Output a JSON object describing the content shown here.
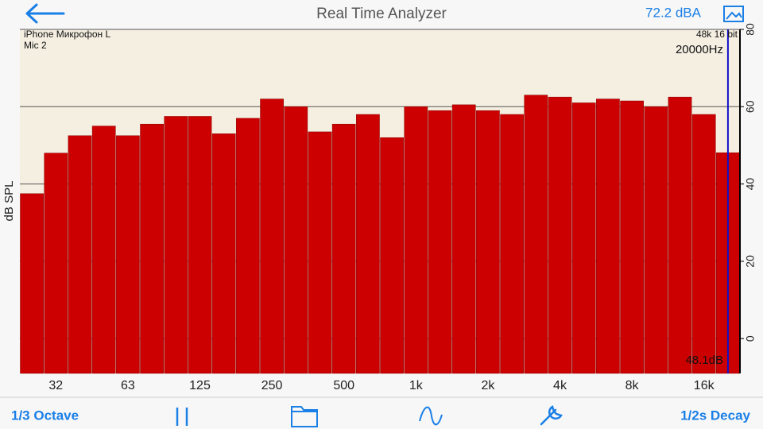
{
  "header": {
    "title": "Real Time Analyzer",
    "level": "72.2 dBA"
  },
  "toolbar": {
    "left": "1/3 Octave",
    "right": "1/2s Decay"
  },
  "chart_data": {
    "type": "bar",
    "y_label": "dB SPL",
    "categories": [
      null,
      "32",
      null,
      null,
      "63",
      null,
      null,
      "125",
      null,
      null,
      "250",
      null,
      null,
      "500",
      null,
      null,
      "1k",
      null,
      null,
      "2k",
      null,
      null,
      "4k",
      null,
      null,
      "8k",
      null,
      null,
      "16k",
      null
    ],
    "values": [
      37.5,
      48,
      52.5,
      55,
      52.5,
      55.5,
      57.5,
      57.5,
      53,
      57,
      62,
      60,
      53.5,
      55.5,
      58,
      52,
      60,
      59,
      60.5,
      59,
      58,
      63,
      62.5,
      61,
      62,
      61.5,
      60,
      62.5,
      58,
      48.1
    ],
    "color": "#cc0000",
    "ylim": [
      -9,
      80
    ],
    "yticks": [
      0,
      20,
      40,
      60,
      80
    ],
    "grid": true,
    "annotations": {
      "device": "iPhone Микрофон L",
      "channel": "Mic 2",
      "format": "48k 16 bit",
      "cursor_freq": "20000Hz",
      "cursor_level": "48.1dB"
    }
  }
}
